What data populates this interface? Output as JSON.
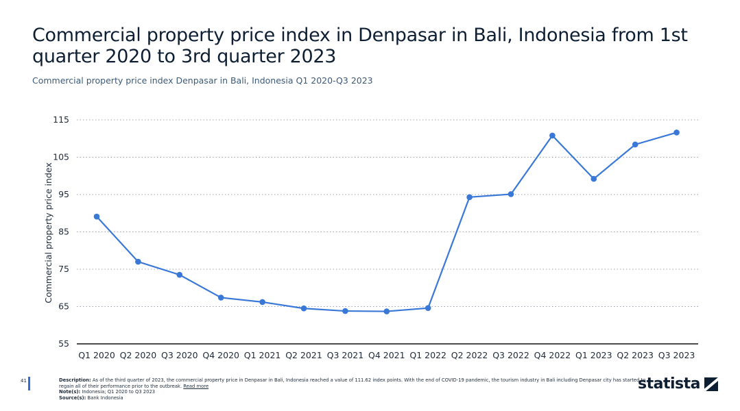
{
  "title": "Commercial property price index in Denpasar in Bali, Indonesia from 1st quarter 2020 to 3rd quarter 2023",
  "subtitle": "Commercial property price index Denpasar in Bali, Indonesia Q1 2020-Q3 2023",
  "chart_data": {
    "type": "line",
    "categories": [
      "Q1 2020",
      "Q2 2020",
      "Q3 2020",
      "Q4 2020",
      "Q1 2021",
      "Q2 2021",
      "Q3 2021",
      "Q4 2021",
      "Q1 2022",
      "Q2 2022",
      "Q3 2022",
      "Q4 2022",
      "Q1 2023",
      "Q2 2023",
      "Q3 2023"
    ],
    "values": [
      89.1,
      77.0,
      73.5,
      67.4,
      66.2,
      64.5,
      63.8,
      63.7,
      64.6,
      94.3,
      95.1,
      110.8,
      99.2,
      108.4,
      111.62
    ],
    "ylabel": "Commercial property price index",
    "xlabel": "",
    "ylim": [
      55,
      115
    ],
    "yticks": [
      55,
      65,
      75,
      85,
      95,
      105,
      115
    ],
    "grid": "horizontal dotted",
    "color": "#3a78d8"
  },
  "footer": {
    "page_number": "41",
    "description_label": "Description:",
    "description": "As of the third quarter of 2023, the commercial property price in Denpasar in Bali, Indonesia reached a value of 111.62 index points. With the end of COVID-19 pandemic, the tourism industry in Bali including Denpasar city has started to regain all of their performance prior to the outbreak.",
    "read_more": "Read more",
    "notes_label": "Note(s):",
    "notes": "Indonesia; Q1 2020 to Q3 2023",
    "source_label": "Source(s):",
    "source": "Bank Indonesia"
  },
  "logo": "statista"
}
